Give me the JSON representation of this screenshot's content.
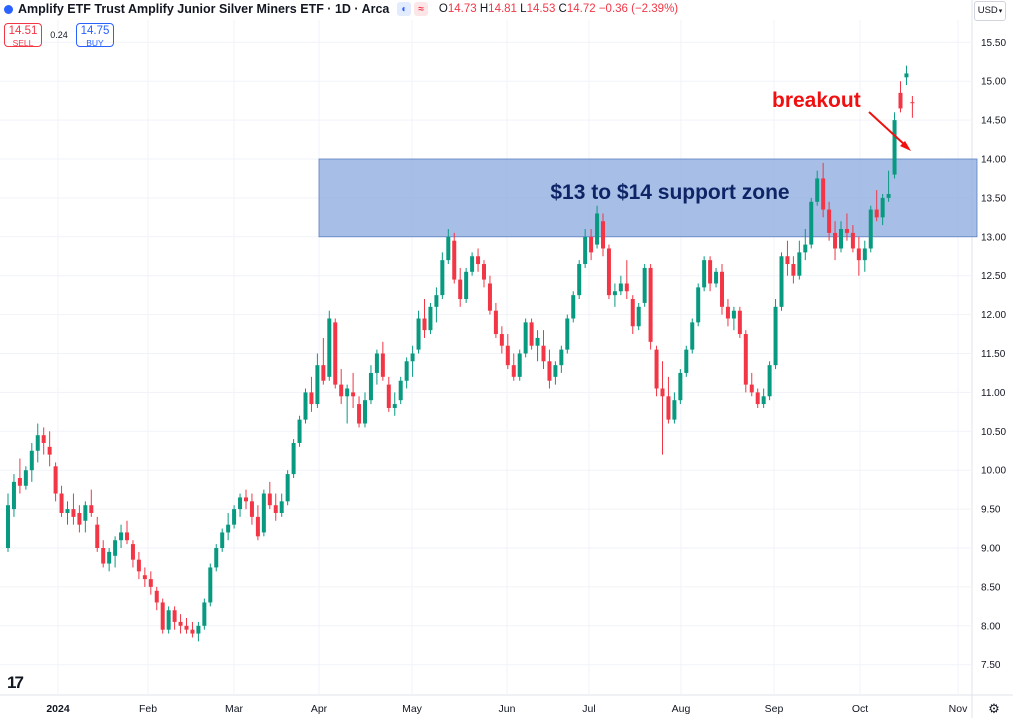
{
  "header": {
    "title": "Amplify ETF Trust Amplify Junior Silver Miners ETF · 1D · Arca",
    "pills": [
      "◐",
      "≈"
    ],
    "ohlc": [
      {
        "k": "O",
        "v": "14.73"
      },
      {
        "k": "H",
        "v": "14.81"
      },
      {
        "k": "L",
        "v": "14.53"
      },
      {
        "k": "C",
        "v": "14.72"
      }
    ],
    "change": "−0.36 (−2.39%)"
  },
  "trade": {
    "sell_price": "14.51",
    "sell_label": "SELL",
    "spread": "0.24",
    "buy_price": "14.75",
    "buy_label": "BUY"
  },
  "currency": "USD",
  "annotations": {
    "zone": "$13 to $14 support zone",
    "breakout": "breakout"
  },
  "colors": {
    "up": "#089981",
    "down": "#f23645",
    "zone": "#8aa9de",
    "annotation_red": "#f01010",
    "zone_text": "#0d2466"
  },
  "icons": {
    "logo": "tradingview-logo-icon",
    "settings": "gear-icon",
    "currency_menu": "chevron-down-icon"
  },
  "chart_data": {
    "type": "candlestick",
    "title": "Amplify ETF Trust Amplify Junior Silver Miners ETF · 1D · Arca",
    "ylim": [
      7.25,
      15.75
    ],
    "y_ticks": [
      "7.50",
      "8.00",
      "8.50",
      "9.00",
      "9.50",
      "10.00",
      "10.50",
      "11.00",
      "11.50",
      "12.00",
      "12.50",
      "13.00",
      "13.50",
      "14.00",
      "14.50",
      "15.00",
      "15.50"
    ],
    "x_ticks": [
      "2024",
      "Feb",
      "Mar",
      "Apr",
      "May",
      "Jun",
      "Jul",
      "Aug",
      "Sep",
      "Oct",
      "Nov"
    ],
    "grid": true,
    "support_zone": {
      "low": 13.0,
      "high": 14.0,
      "label": "$13 to $14 support zone"
    },
    "candles": [
      [
        9.0,
        9.7,
        8.95,
        9.55
      ],
      [
        9.5,
        9.95,
        9.4,
        9.85
      ],
      [
        9.9,
        10.15,
        9.7,
        9.8
      ],
      [
        9.8,
        10.05,
        9.75,
        10.0
      ],
      [
        10.0,
        10.35,
        9.85,
        10.25
      ],
      [
        10.25,
        10.6,
        10.1,
        10.45
      ],
      [
        10.45,
        10.55,
        10.2,
        10.35
      ],
      [
        10.3,
        10.5,
        10.05,
        10.2
      ],
      [
        10.05,
        10.1,
        9.6,
        9.7
      ],
      [
        9.7,
        9.8,
        9.4,
        9.45
      ],
      [
        9.45,
        9.6,
        9.3,
        9.5
      ],
      [
        9.5,
        9.7,
        9.3,
        9.4
      ],
      [
        9.45,
        9.55,
        9.2,
        9.3
      ],
      [
        9.35,
        9.6,
        9.2,
        9.55
      ],
      [
        9.55,
        9.75,
        9.4,
        9.45
      ],
      [
        9.3,
        9.4,
        8.95,
        9.0
      ],
      [
        9.0,
        9.1,
        8.75,
        8.8
      ],
      [
        8.8,
        9.0,
        8.7,
        8.95
      ],
      [
        8.9,
        9.15,
        8.75,
        9.1
      ],
      [
        9.1,
        9.3,
        9.0,
        9.2
      ],
      [
        9.2,
        9.35,
        9.05,
        9.1
      ],
      [
        9.05,
        9.1,
        8.75,
        8.85
      ],
      [
        8.85,
        8.95,
        8.6,
        8.7
      ],
      [
        8.65,
        8.75,
        8.5,
        8.6
      ],
      [
        8.6,
        8.7,
        8.4,
        8.5
      ],
      [
        8.45,
        8.5,
        8.2,
        8.3
      ],
      [
        8.3,
        8.35,
        7.9,
        7.95
      ],
      [
        7.95,
        8.25,
        7.9,
        8.2
      ],
      [
        8.2,
        8.25,
        7.95,
        8.05
      ],
      [
        8.05,
        8.15,
        7.9,
        8.0
      ],
      [
        8.0,
        8.1,
        7.9,
        7.95
      ],
      [
        7.95,
        8.05,
        7.85,
        7.9
      ],
      [
        7.9,
        8.05,
        7.8,
        8.0
      ],
      [
        8.0,
        8.35,
        7.95,
        8.3
      ],
      [
        8.3,
        8.8,
        8.25,
        8.75
      ],
      [
        8.75,
        9.05,
        8.7,
        9.0
      ],
      [
        9.0,
        9.25,
        8.95,
        9.2
      ],
      [
        9.2,
        9.45,
        9.1,
        9.3
      ],
      [
        9.3,
        9.55,
        9.25,
        9.5
      ],
      [
        9.5,
        9.7,
        9.4,
        9.65
      ],
      [
        9.65,
        9.75,
        9.5,
        9.6
      ],
      [
        9.6,
        9.7,
        9.3,
        9.4
      ],
      [
        9.4,
        9.55,
        9.1,
        9.15
      ],
      [
        9.2,
        9.75,
        9.15,
        9.7
      ],
      [
        9.7,
        9.85,
        9.5,
        9.55
      ],
      [
        9.55,
        9.7,
        9.35,
        9.45
      ],
      [
        9.45,
        9.7,
        9.4,
        9.6
      ],
      [
        9.6,
        10.0,
        9.55,
        9.95
      ],
      [
        9.95,
        10.4,
        9.9,
        10.35
      ],
      [
        10.35,
        10.7,
        10.3,
        10.65
      ],
      [
        10.65,
        11.05,
        10.6,
        11.0
      ],
      [
        11.0,
        11.2,
        10.75,
        10.85
      ],
      [
        10.85,
        11.5,
        10.8,
        11.35
      ],
      [
        11.35,
        11.7,
        11.1,
        11.15
      ],
      [
        11.2,
        12.05,
        11.15,
        11.95
      ],
      [
        11.9,
        11.95,
        11.05,
        11.1
      ],
      [
        11.1,
        11.3,
        10.85,
        10.95
      ],
      [
        10.95,
        11.1,
        10.6,
        11.05
      ],
      [
        11.0,
        11.25,
        10.8,
        10.95
      ],
      [
        10.85,
        10.95,
        10.55,
        10.6
      ],
      [
        10.6,
        11.0,
        10.55,
        10.9
      ],
      [
        10.9,
        11.35,
        10.85,
        11.25
      ],
      [
        11.25,
        11.55,
        11.1,
        11.5
      ],
      [
        11.5,
        11.65,
        11.15,
        11.2
      ],
      [
        11.1,
        11.2,
        10.75,
        10.8
      ],
      [
        10.8,
        11.0,
        10.7,
        10.85
      ],
      [
        10.9,
        11.2,
        10.85,
        11.15
      ],
      [
        11.15,
        11.45,
        11.05,
        11.4
      ],
      [
        11.4,
        11.6,
        11.2,
        11.5
      ],
      [
        11.55,
        12.05,
        11.5,
        11.95
      ],
      [
        11.95,
        12.2,
        11.7,
        11.8
      ],
      [
        11.8,
        12.15,
        11.75,
        12.1
      ],
      [
        12.1,
        12.35,
        11.9,
        12.25
      ],
      [
        12.25,
        12.8,
        12.2,
        12.7
      ],
      [
        12.7,
        13.1,
        12.65,
        13.0
      ],
      [
        12.95,
        13.05,
        12.4,
        12.45
      ],
      [
        12.45,
        12.6,
        12.1,
        12.2
      ],
      [
        12.2,
        12.6,
        12.15,
        12.55
      ],
      [
        12.55,
        12.8,
        12.5,
        12.75
      ],
      [
        12.75,
        12.85,
        12.55,
        12.65
      ],
      [
        12.65,
        12.7,
        12.35,
        12.45
      ],
      [
        12.4,
        12.5,
        12.0,
        12.05
      ],
      [
        12.05,
        12.15,
        11.7,
        11.75
      ],
      [
        11.75,
        11.85,
        11.5,
        11.6
      ],
      [
        11.6,
        11.75,
        11.3,
        11.35
      ],
      [
        11.35,
        11.5,
        11.15,
        11.2
      ],
      [
        11.2,
        11.55,
        11.15,
        11.5
      ],
      [
        11.5,
        11.95,
        11.45,
        11.9
      ],
      [
        11.9,
        11.95,
        11.55,
        11.6
      ],
      [
        11.6,
        11.8,
        11.4,
        11.7
      ],
      [
        11.6,
        11.8,
        11.3,
        11.4
      ],
      [
        11.4,
        11.55,
        11.05,
        11.15
      ],
      [
        11.2,
        11.4,
        11.1,
        11.35
      ],
      [
        11.35,
        11.6,
        11.25,
        11.55
      ],
      [
        11.55,
        12.0,
        11.5,
        11.95
      ],
      [
        11.95,
        12.3,
        11.9,
        12.25
      ],
      [
        12.25,
        12.7,
        12.2,
        12.65
      ],
      [
        12.65,
        13.1,
        12.6,
        13.0
      ],
      [
        13.0,
        13.1,
        12.7,
        12.8
      ],
      [
        12.9,
        13.4,
        12.85,
        13.3
      ],
      [
        13.2,
        13.3,
        12.75,
        12.85
      ],
      [
        12.85,
        12.9,
        12.2,
        12.25
      ],
      [
        12.25,
        12.4,
        12.1,
        12.3
      ],
      [
        12.3,
        12.5,
        12.25,
        12.4
      ],
      [
        12.4,
        12.7,
        12.2,
        12.3
      ],
      [
        12.2,
        12.25,
        11.75,
        11.85
      ],
      [
        11.85,
        12.15,
        11.8,
        12.1
      ],
      [
        12.15,
        12.65,
        12.1,
        12.6
      ],
      [
        12.6,
        12.65,
        11.55,
        11.65
      ],
      [
        11.55,
        11.6,
        10.95,
        11.05
      ],
      [
        11.05,
        11.4,
        10.2,
        10.95
      ],
      [
        10.95,
        11.2,
        10.6,
        10.65
      ],
      [
        10.65,
        11.0,
        10.6,
        10.9
      ],
      [
        10.9,
        11.3,
        10.85,
        11.25
      ],
      [
        11.25,
        11.6,
        11.2,
        11.55
      ],
      [
        11.55,
        11.95,
        11.5,
        11.9
      ],
      [
        11.9,
        12.4,
        11.85,
        12.35
      ],
      [
        12.35,
        12.75,
        12.3,
        12.7
      ],
      [
        12.7,
        12.75,
        12.3,
        12.4
      ],
      [
        12.4,
        12.6,
        12.35,
        12.55
      ],
      [
        12.55,
        12.65,
        12.0,
        12.1
      ],
      [
        12.1,
        12.2,
        11.85,
        11.95
      ],
      [
        11.95,
        12.1,
        11.8,
        12.05
      ],
      [
        12.05,
        12.1,
        11.7,
        11.75
      ],
      [
        11.75,
        11.8,
        11.0,
        11.1
      ],
      [
        11.1,
        11.25,
        10.95,
        11.0
      ],
      [
        11.0,
        11.05,
        10.8,
        10.85
      ],
      [
        10.85,
        11.05,
        10.8,
        10.95
      ],
      [
        10.95,
        11.4,
        10.9,
        11.35
      ],
      [
        11.35,
        12.2,
        11.3,
        12.1
      ],
      [
        12.1,
        12.8,
        12.05,
        12.75
      ],
      [
        12.75,
        12.95,
        12.5,
        12.65
      ],
      [
        12.65,
        12.75,
        12.4,
        12.5
      ],
      [
        12.5,
        12.95,
        12.45,
        12.8
      ],
      [
        12.8,
        13.1,
        12.7,
        12.9
      ],
      [
        12.9,
        13.5,
        12.85,
        13.45
      ],
      [
        13.45,
        13.85,
        13.4,
        13.75
      ],
      [
        13.75,
        13.95,
        13.25,
        13.35
      ],
      [
        13.35,
        13.45,
        12.95,
        13.05
      ],
      [
        13.05,
        13.2,
        12.7,
        12.85
      ],
      [
        12.85,
        13.2,
        12.8,
        13.1
      ],
      [
        13.1,
        13.3,
        12.95,
        13.05
      ],
      [
        13.05,
        13.15,
        12.8,
        12.85
      ],
      [
        12.85,
        13.0,
        12.5,
        12.7
      ],
      [
        12.7,
        12.95,
        12.55,
        12.85
      ],
      [
        12.85,
        13.4,
        12.8,
        13.35
      ],
      [
        13.35,
        13.6,
        13.2,
        13.25
      ],
      [
        13.25,
        13.55,
        13.15,
        13.5
      ],
      [
        13.5,
        13.85,
        13.45,
        13.55
      ],
      [
        13.8,
        14.6,
        13.75,
        14.5
      ],
      [
        14.85,
        15.0,
        14.6,
        14.65
      ],
      [
        15.05,
        15.2,
        14.95,
        15.1
      ],
      [
        14.73,
        14.81,
        14.53,
        14.72
      ]
    ]
  }
}
